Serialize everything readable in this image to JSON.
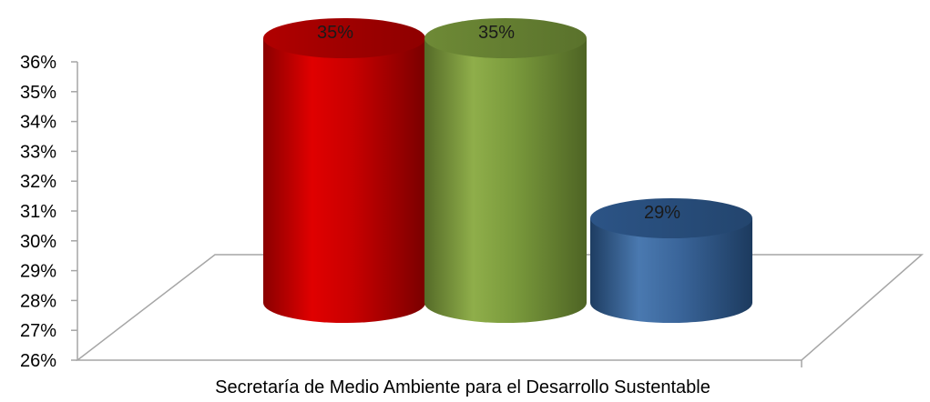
{
  "chart_data": {
    "type": "bar",
    "style": "3d-cylinder",
    "categories": [
      "Secretaría de Medio Ambiente para el Desarrollo Sustentable"
    ],
    "series": [
      {
        "values": [
          35
        ],
        "color": "#c00000",
        "label": "35%"
      },
      {
        "values": [
          35
        ],
        "color": "#77933c",
        "label": "35%"
      },
      {
        "values": [
          29
        ],
        "color": "#2e5a8e",
        "label": "29%"
      }
    ],
    "y_ticks": [
      "26%",
      "27%",
      "28%",
      "29%",
      "30%",
      "31%",
      "32%",
      "33%",
      "34%",
      "35%",
      "36%"
    ],
    "ylim": [
      26,
      36
    ],
    "y_unit": "%",
    "grid": false,
    "legend": "none"
  }
}
